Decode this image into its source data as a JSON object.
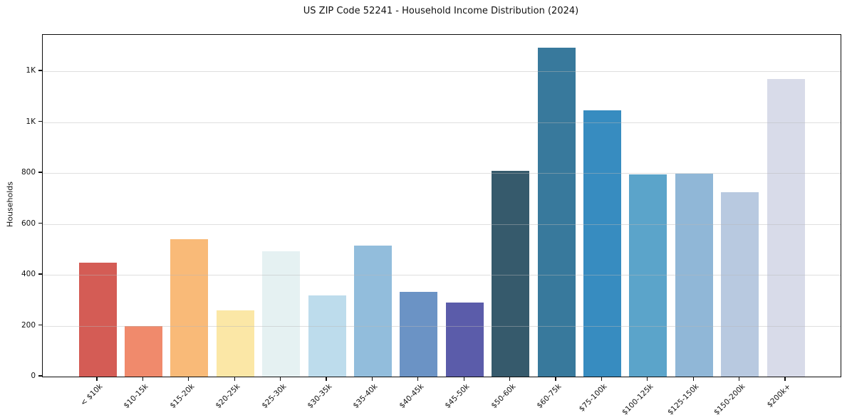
{
  "title": "US ZIP Code 52241 - Household Income Distribution (2024)",
  "chart_data": {
    "type": "bar",
    "title": "US ZIP Code 52241 - Household Income Distribution (2024)",
    "xlabel": "",
    "ylabel": "Households",
    "legend": "none",
    "grid": "horizontal",
    "ylim": [
      0,
      1343
    ],
    "categories": [
      "< $10k",
      "$10-15k",
      "$15-20k",
      "$20-25k",
      "$25-30k",
      "$30-35k",
      "$35-40k",
      "$40-45k",
      "$45-50k",
      "$50-60k",
      "$60-75k",
      "$75-100k",
      "$100-125k",
      "$125-150k",
      "$150-200k",
      "$200k+"
    ],
    "values": [
      447,
      198,
      540,
      260,
      492,
      320,
      514,
      334,
      290,
      809,
      1293,
      1047,
      794,
      797,
      725,
      1170
    ],
    "bar_colors": [
      "#d45c55",
      "#f08a6c",
      "#f9ba78",
      "#fbe7a6",
      "#e5f1f2",
      "#bddcec",
      "#92bddc",
      "#6b93c5",
      "#5b5caa",
      "#365a6c",
      "#38799c",
      "#378cc0",
      "#5ba4ca",
      "#90b7d7",
      "#b8c9e0",
      "#d8dbe9"
    ],
    "yticks": [
      {
        "value": 0,
        "label": "0"
      },
      {
        "value": 200,
        "label": "200"
      },
      {
        "value": 400,
        "label": "400"
      },
      {
        "value": 600,
        "label": "600"
      },
      {
        "value": 800,
        "label": "800"
      },
      {
        "value": 1000,
        "label": "1K"
      },
      {
        "value": 1200,
        "label": "1K"
      }
    ]
  }
}
